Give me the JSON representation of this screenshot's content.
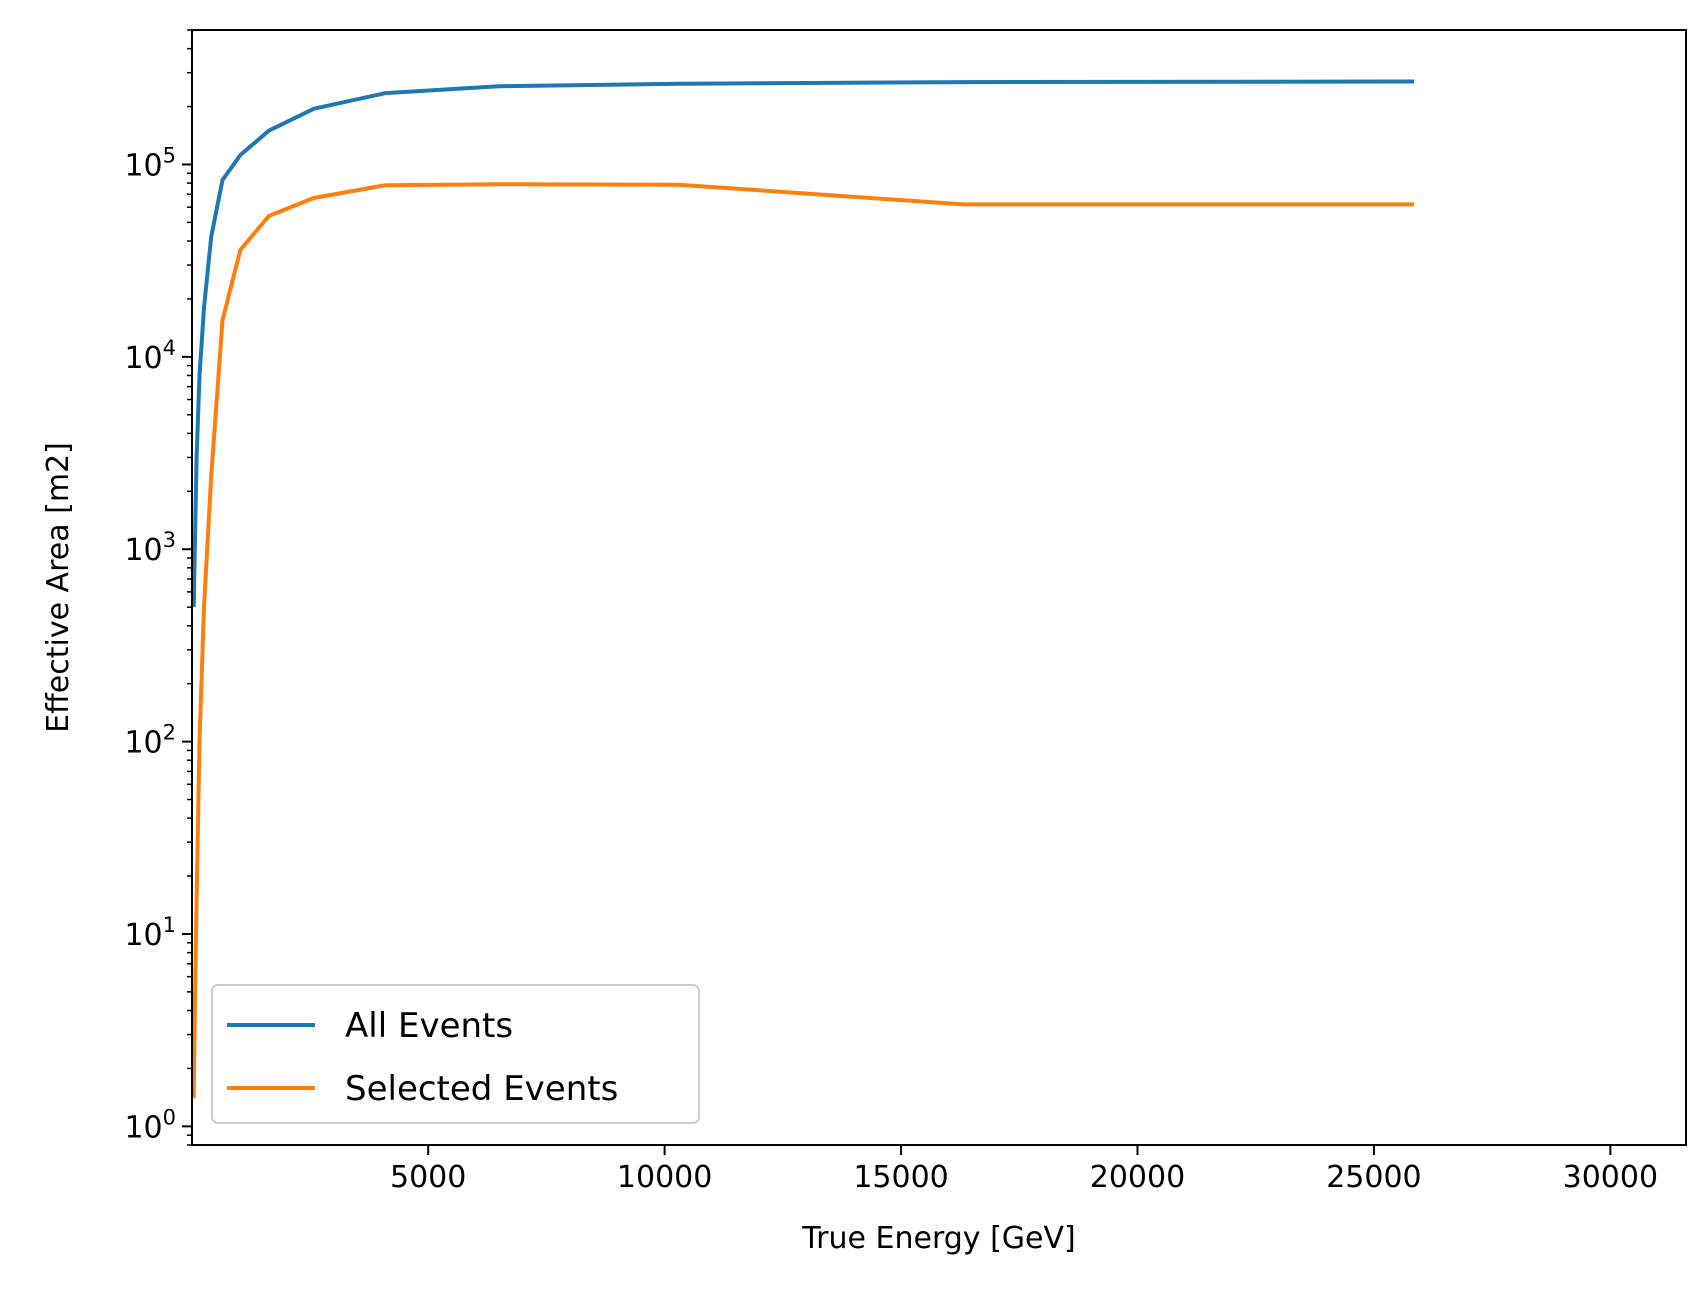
{
  "chart_data": {
    "type": "line",
    "title": "",
    "xlabel": "True Energy [GeV]",
    "ylabel": "Effective Area [m2]",
    "xlim": [
      5,
      31600
    ],
    "ylim": [
      0.8,
      500000
    ],
    "yscale": "log",
    "grid": false,
    "legend_position": "lower-left",
    "x_ticks": [
      {
        "value": 5000,
        "label": "5000"
      },
      {
        "value": 10000,
        "label": "10000"
      },
      {
        "value": 15000,
        "label": "15000"
      },
      {
        "value": 20000,
        "label": "20000"
      },
      {
        "value": 25000,
        "label": "25000"
      },
      {
        "value": 30000,
        "label": "30000"
      }
    ],
    "y_ticks": [
      {
        "value": 1,
        "base": "10",
        "exp": "0"
      },
      {
        "value": 10,
        "base": "10",
        "exp": "1"
      },
      {
        "value": 100,
        "base": "10",
        "exp": "2"
      },
      {
        "value": 1000,
        "base": "10",
        "exp": "3"
      },
      {
        "value": 10000,
        "base": "10",
        "exp": "4"
      },
      {
        "value": 100000,
        "base": "10",
        "exp": "5"
      }
    ],
    "series": [
      {
        "name": "All Events",
        "color": "#1f77b4",
        "x": [
          41,
          65,
          103,
          163,
          258,
          410,
          649,
          1029,
          1631,
          2585,
          4097,
          6493,
          10291,
          16310,
          25850
        ],
        "y": [
          500,
          1000,
          3000,
          8000,
          18000,
          42000,
          83000,
          112000,
          150000,
          195000,
          235000,
          255000,
          263000,
          268000,
          270000
        ]
      },
      {
        "name": "Selected Events",
        "color": "#ff7f0e",
        "x": [
          41,
          65,
          103,
          163,
          258,
          410,
          649,
          1029,
          1631,
          2585,
          4097,
          6493,
          10291,
          16310,
          25850
        ],
        "y": [
          1.4,
          4,
          15,
          100,
          500,
          2400,
          15500,
          36000,
          54000,
          67000,
          78000,
          79000,
          78500,
          62000,
          62000
        ]
      }
    ]
  }
}
